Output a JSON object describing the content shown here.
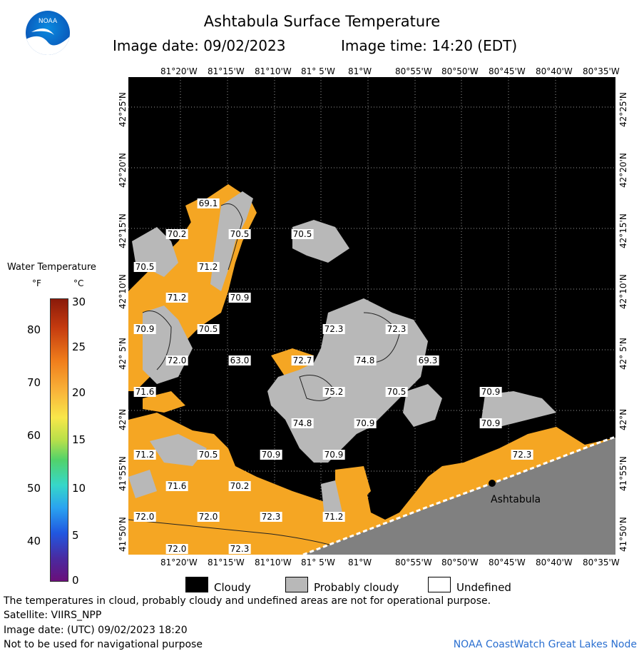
{
  "header": {
    "title": "Ashtabula Surface Temperature",
    "image_date": "Image date: 09/02/2023",
    "image_time": "Image time: 14:20 (EDT)",
    "logo_text": "NOAA"
  },
  "axes": {
    "lon_ticks": [
      "81°20'W",
      "81°15'W",
      "81°10'W",
      "81° 5'W",
      "81°W",
      "80°55'W",
      "80°50'W",
      "80°45'W",
      "80°40'W",
      "80°35'W"
    ],
    "lat_ticks": [
      "42°25'N",
      "42°20'N",
      "42°15'N",
      "42°10'N",
      "42° 5'N",
      "42°N",
      "41°55'N",
      "41°50'N"
    ]
  },
  "legend": {
    "title": "Water Temperature",
    "unit_f": "°F",
    "unit_c": "°C",
    "f_ticks": [
      "80",
      "70",
      "60",
      "50",
      "40"
    ],
    "c_ticks": [
      "30",
      "25",
      "20",
      "15",
      "10",
      "5",
      "0"
    ]
  },
  "key": {
    "cloudy": "Cloudy",
    "probably_cloudy": "Probably cloudy",
    "undefined": "Undefined",
    "cloudy_color": "#000000",
    "probably_cloudy_color": "#b8b8b8",
    "undefined_color": "#ffffff"
  },
  "map": {
    "city": "Ashtabula",
    "water_color": "#f5a623",
    "cloud_color": "#000000",
    "probable_cloud_color": "#b8b8b8",
    "land_color": "#808080",
    "temperature_labels": [
      "69.1",
      "70.2",
      "70.5",
      "70.5",
      "70.5",
      "71.2",
      "71.2",
      "70.9",
      "70.9",
      "70.5",
      "72.0",
      "63.0",
      "72.7",
      "72.3",
      "72.3",
      "74.8",
      "69.3",
      "71.6",
      "75.2",
      "70.5",
      "74.8",
      "70.9",
      "70.9",
      "70.9",
      "71.2",
      "70.5",
      "70.9",
      "70.9",
      "72.3",
      "71.6",
      "70.2",
      "72.0",
      "72.0",
      "72.3",
      "71.2",
      "72.0",
      "72.3"
    ]
  },
  "footer": {
    "note": "The temperatures in cloud, probably cloudy and undefined areas are not for operational purpose.",
    "satellite": "Satellite: VIIRS_NPP",
    "utc_date": "Image date: (UTC) 09/02/2023  18:20",
    "nav_note": "Not to be used for navigational purpose",
    "credit": "NOAA CoastWatch Great Lakes Node"
  }
}
